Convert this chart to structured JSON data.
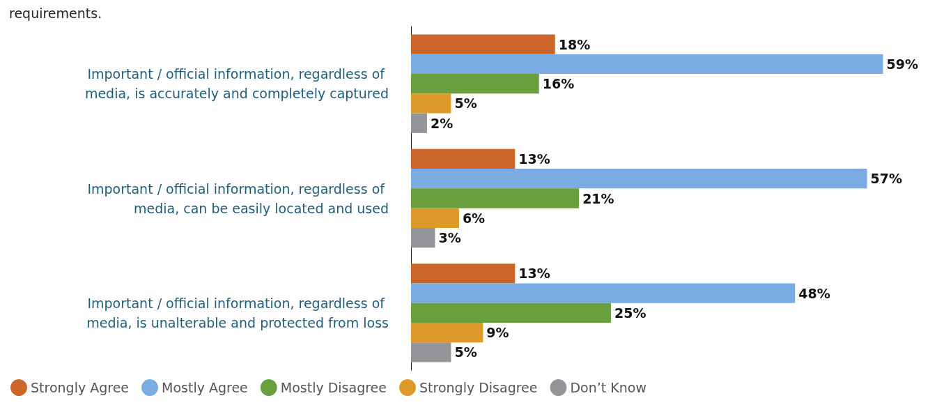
{
  "chart_data": {
    "type": "bar",
    "orientation": "horizontal",
    "title": "requirements.",
    "categories": [
      "Important / official information, regardless of media, is accurately and completely captured",
      "Important / official information, regardless of media, can be easily located and used",
      "Important / official information, regardless of media, is unalterable and protected from loss"
    ],
    "series": [
      {
        "name": "Strongly Agree",
        "color": "#cc6529",
        "values": [
          18,
          13,
          13
        ],
        "value_labels": [
          "18%",
          "13%",
          "13%"
        ]
      },
      {
        "name": "Mostly Agree",
        "color": "#7aabe3",
        "values": [
          59,
          57,
          48
        ],
        "value_labels": [
          "59%",
          "57%",
          "48%"
        ]
      },
      {
        "name": "Mostly Disagree",
        "color": "#6a9f3e",
        "values": [
          16,
          21,
          25
        ],
        "value_labels": [
          "16%",
          "21%",
          "25%"
        ]
      },
      {
        "name": "Strongly Disagree",
        "color": "#dd9a28",
        "values": [
          5,
          6,
          9
        ],
        "value_labels": [
          "5%",
          "6%",
          "9%"
        ]
      },
      {
        "name": "Don’t Know",
        "color": "#939598",
        "values": [
          2,
          3,
          5
        ],
        "value_labels": [
          "2%",
          "3%",
          "5%"
        ]
      }
    ],
    "legend": "bottom left"
  }
}
